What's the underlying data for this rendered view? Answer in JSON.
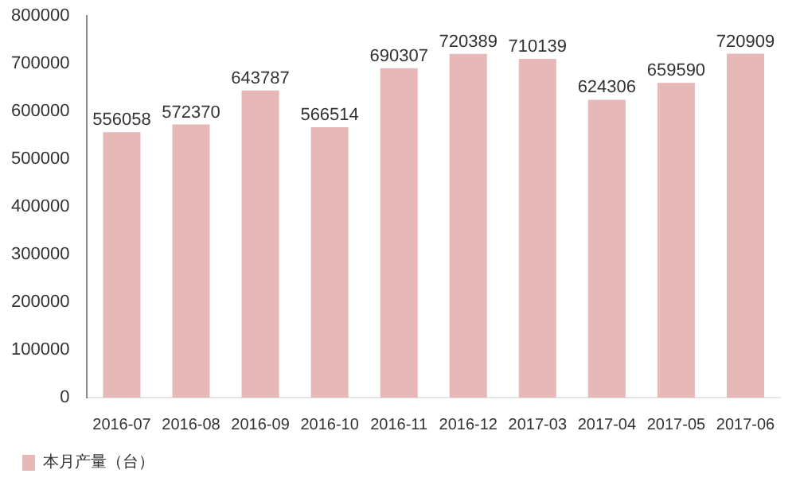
{
  "chart_data": {
    "type": "bar",
    "categories": [
      "2016-07",
      "2016-08",
      "2016-09",
      "2016-10",
      "2016-11",
      "2016-12",
      "2017-03",
      "2017-04",
      "2017-05",
      "2017-06"
    ],
    "series": [
      {
        "name": "本月产量（台）",
        "color": "#e6b8b7",
        "values": [
          556058,
          572370,
          643787,
          566514,
          690307,
          720389,
          710139,
          624306,
          659590,
          720909
        ]
      }
    ],
    "ylim": [
      0,
      800000
    ],
    "yticks": [
      0,
      100000,
      200000,
      300000,
      400000,
      500000,
      600000,
      700000,
      800000
    ],
    "grid": false,
    "legend": "bottom left",
    "data_labels": true
  }
}
